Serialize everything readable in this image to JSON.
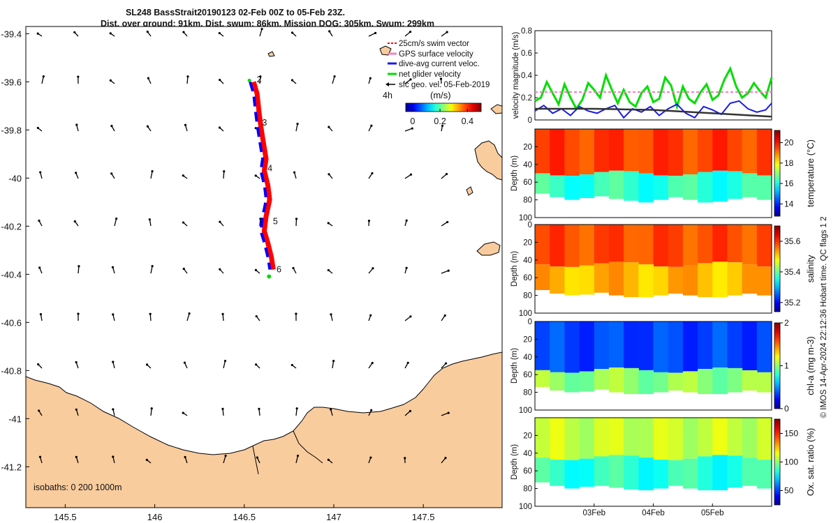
{
  "title": {
    "line1": "SL248 BassStrait20190123 02-Feb 00Z to 05-Feb 23Z.",
    "line2": "Dist. over ground: 91km. Dist. swum: 86km. Mission DOG: 305km. Swum: 299km"
  },
  "colors": {
    "land": "#f9cc9e",
    "land_edge": "#000000",
    "track_red": "#ff0000",
    "track_blue": "#0000ff",
    "net_velocity": "#00dd00",
    "sfc_vector": "#000000",
    "dive_avg": "#1a1ae6",
    "gps_surface": "#f080c0"
  },
  "chart_data": [
    {
      "type": "scatter",
      "name": "map",
      "title": "SL248 BassStrait20190123 02-Feb 00Z to 05-Feb 23Z.",
      "x_ticks": [
        "145.5",
        "146",
        "146.5",
        "147",
        "147.5"
      ],
      "x_tick_values": [
        145.5,
        146,
        146.5,
        147,
        147.5
      ],
      "y_ticks": [
        "-39.4",
        "-39.6",
        "-39.8",
        "-40",
        "-40.2",
        "-40.4",
        "-40.6",
        "-40.8",
        "-41",
        "-41.2"
      ],
      "y_tick_values": [
        -39.4,
        -39.6,
        -39.8,
        -40,
        -40.2,
        -40.4,
        -40.6,
        -40.8,
        -41,
        -41.2
      ],
      "xlim": [
        145.28,
        147.94
      ],
      "ylim": [
        -41.37,
        -39.37
      ],
      "legend": {
        "placement": "top-right",
        "entries": [
          "25cm/s swim vector",
          "GPS surface velocity",
          "dive-avg current veloc.",
          "net glider velocity",
          "sfc geo. vel. 05-Feb-2019"
        ]
      },
      "colorbar_label": "(m/s)",
      "colorbar_ticks": [
        "0",
        "0.2",
        "0.4"
      ],
      "colorbar_tick_values": [
        0,
        0.2,
        0.4
      ],
      "colorbar_range": [
        -0.05,
        0.5
      ],
      "time_label": "4h",
      "isobaths_label": "isobaths: 0   200  1000m",
      "track_labels": [
        "2",
        "3",
        "4",
        "5",
        "6"
      ],
      "track": [
        [
          146.54,
          -39.6
        ],
        [
          146.56,
          -39.65
        ],
        [
          146.57,
          -39.72
        ],
        [
          146.58,
          -39.78
        ],
        [
          146.59,
          -39.83
        ],
        [
          146.61,
          -39.92
        ],
        [
          146.6,
          -39.97
        ],
        [
          146.62,
          -40.03
        ],
        [
          146.63,
          -40.09
        ],
        [
          146.61,
          -40.16
        ],
        [
          146.6,
          -40.22
        ],
        [
          146.62,
          -40.27
        ],
        [
          146.64,
          -40.33
        ],
        [
          146.65,
          -40.38
        ]
      ],
      "track_label_positions": [
        [
          146.57,
          -39.59
        ],
        [
          146.6,
          -39.77
        ],
        [
          146.63,
          -39.96
        ],
        [
          146.66,
          -40.18
        ],
        [
          146.68,
          -40.38
        ]
      ]
    },
    {
      "type": "line",
      "name": "velocity",
      "ylabel": "velocity magnitude (m/s)",
      "ylim": [
        0,
        0.8
      ],
      "y_ticks": [
        "0",
        "0.2",
        "0.4",
        "0.6",
        "0.8"
      ],
      "y_tick_values": [
        0,
        0.2,
        0.4,
        0.6,
        0.8
      ],
      "xlim": [
        0,
        4
      ],
      "series": [
        {
          "name": "net glider velocity",
          "color": "#00dd00",
          "x": [
            0,
            0.1,
            0.2,
            0.3,
            0.4,
            0.5,
            0.6,
            0.7,
            0.8,
            0.9,
            1.0,
            1.1,
            1.2,
            1.3,
            1.4,
            1.5,
            1.6,
            1.7,
            1.8,
            1.9,
            2.0,
            2.1,
            2.2,
            2.3,
            2.4,
            2.5,
            2.6,
            2.7,
            2.8,
            2.9,
            3.0,
            3.1,
            3.2,
            3.3,
            3.4,
            3.5,
            3.6,
            3.7,
            3.8,
            3.9,
            4.0
          ],
          "values": [
            0.17,
            0.2,
            0.34,
            0.24,
            0.14,
            0.32,
            0.2,
            0.1,
            0.18,
            0.33,
            0.27,
            0.2,
            0.4,
            0.27,
            0.15,
            0.27,
            0.16,
            0.12,
            0.24,
            0.3,
            0.16,
            0.19,
            0.38,
            0.31,
            0.12,
            0.3,
            0.19,
            0.15,
            0.25,
            0.32,
            0.18,
            0.22,
            0.36,
            0.46,
            0.3,
            0.2,
            0.24,
            0.33,
            0.26,
            0.2,
            0.38
          ]
        },
        {
          "name": "GPS surface velocity",
          "color": "#f080c0",
          "x": [
            0,
            4.0
          ],
          "values": [
            0.25,
            0.25
          ]
        },
        {
          "name": "dive-avg current veloc.",
          "color": "#1a1ae6",
          "x": [
            0,
            0.15,
            0.3,
            0.45,
            0.6,
            0.75,
            0.9,
            1.05,
            1.2,
            1.35,
            1.5,
            1.65,
            1.8,
            1.95,
            2.1,
            2.25,
            2.4,
            2.55,
            2.7,
            2.85,
            3.0,
            3.15,
            3.3,
            3.45,
            3.6,
            3.75,
            3.9,
            4.0
          ],
          "values": [
            0.08,
            0.13,
            0.06,
            0.1,
            0.04,
            0.12,
            0.08,
            0.06,
            0.1,
            0.13,
            0.02,
            0.1,
            0.07,
            0.12,
            0.04,
            0.1,
            0.14,
            0.06,
            0.02,
            0.12,
            0.09,
            0.05,
            0.15,
            0.17,
            0.1,
            0.07,
            0.09,
            0.15
          ]
        },
        {
          "name": "sfc geo. vel.",
          "color": "#333333",
          "x": [
            0,
            1.0,
            2.0,
            3.0,
            4.0
          ],
          "values": [
            0.1,
            0.1,
            0.09,
            0.06,
            0.03
          ]
        }
      ]
    },
    {
      "type": "heatmap",
      "name": "temperature",
      "ylabel": "Depth (m)",
      "colorbar_label": "temperature (°C)",
      "colorbar_ticks": [
        "14",
        "16",
        "18",
        "20"
      ],
      "colorbar_tick_values": [
        14,
        16,
        18,
        20
      ],
      "clim": [
        12.8,
        21.2
      ],
      "ylim": [
        100,
        0
      ],
      "y_ticks": [
        "20",
        "40",
        "60",
        "80",
        "100"
      ],
      "y_tick_values": [
        20,
        40,
        60,
        80,
        100
      ],
      "xlim": [
        0,
        4
      ],
      "surface_value": 19.5,
      "deep_value": 16.2,
      "layer_depth": 50,
      "bottom_depth": [
        73,
        77,
        80,
        78,
        76,
        79,
        81,
        83,
        80,
        77,
        80,
        83,
        82,
        79,
        77,
        80
      ]
    },
    {
      "type": "heatmap",
      "name": "salinity",
      "ylabel": "Depth (m)",
      "colorbar_label": "salinity",
      "colorbar_ticks": [
        "35.2",
        "35.4",
        "35.6"
      ],
      "colorbar_tick_values": [
        35.2,
        35.4,
        35.6
      ],
      "clim": [
        35.14,
        35.7
      ],
      "ylim": [
        100,
        0
      ],
      "y_ticks": [
        "0",
        "20",
        "40",
        "60",
        "80",
        "100"
      ],
      "y_tick_values": [
        0,
        20,
        40,
        60,
        80,
        100
      ],
      "xlim": [
        0,
        4
      ],
      "surface_value": 35.58,
      "deep_value": 35.52,
      "layer_depth": 45,
      "bottom_depth": [
        74,
        78,
        80,
        79,
        77,
        80,
        82,
        82,
        80,
        78,
        80,
        82,
        82,
        80,
        78,
        80
      ]
    },
    {
      "type": "heatmap",
      "name": "chl-a",
      "ylabel": "Depth (m)",
      "colorbar_label": "chl-a (mg m-3)",
      "colorbar_ticks": [
        "0",
        "1",
        "2"
      ],
      "colorbar_tick_values": [
        0,
        1,
        2
      ],
      "clim": [
        0,
        2
      ],
      "ylim": [
        100,
        0
      ],
      "y_ticks": [
        "0",
        "20",
        "40",
        "60",
        "80",
        "100"
      ],
      "y_tick_values": [
        0,
        20,
        40,
        60,
        80,
        100
      ],
      "xlim": [
        0,
        4
      ],
      "surface_value": 0.35,
      "deep_value": 1.0,
      "layer_depth": 55,
      "bottom_depth": [
        74,
        78,
        80,
        79,
        77,
        80,
        82,
        82,
        80,
        78,
        80,
        82,
        82,
        80,
        78,
        80
      ]
    },
    {
      "type": "heatmap",
      "name": "oxygen",
      "ylabel": "Depth (m)",
      "colorbar_label": "Ox. sat. ratio (%)",
      "colorbar_ticks": [
        "50",
        "100",
        "150"
      ],
      "colorbar_tick_values": [
        50,
        100,
        150
      ],
      "clim": [
        25,
        175
      ],
      "ylim": [
        100,
        0
      ],
      "y_ticks": [
        "20",
        "40",
        "60",
        "80",
        "100"
      ],
      "y_tick_values": [
        20,
        40,
        60,
        80,
        100
      ],
      "xlim": [
        0,
        4
      ],
      "x_ticks": [
        "03Feb",
        "04Feb",
        "05Feb"
      ],
      "x_tick_values": [
        1,
        2,
        3
      ],
      "surface_value": 108,
      "deep_value": 85,
      "layer_depth": 45,
      "bottom_depth": [
        73,
        77,
        80,
        78,
        77,
        79,
        81,
        82,
        80,
        77,
        80,
        82,
        82,
        79,
        77,
        80
      ]
    }
  ],
  "credit": "© IMOS 14-Apr-2024 22:12:36 Hobart time. QC flags 1  2"
}
